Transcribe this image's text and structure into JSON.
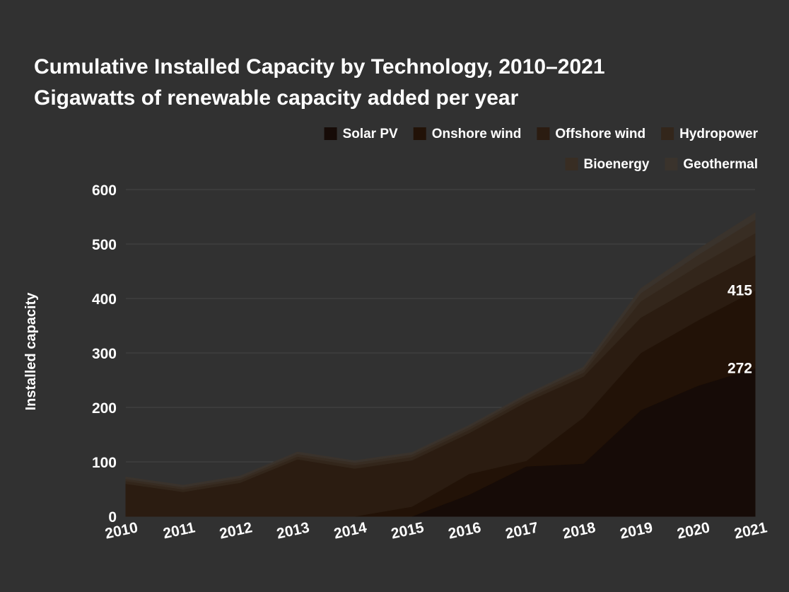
{
  "chart_data": {
    "type": "area",
    "stacked": true,
    "title": [
      "Cumulative Installed Capacity by Technology, 2010–2021",
      "Gigawatts of renewable capacity added per year"
    ],
    "xlabel": "",
    "ylabel": "Installed capacity",
    "x": [
      "2010",
      "2011",
      "2012",
      "2013",
      "2014",
      "2015",
      "2016",
      "2017",
      "2018",
      "2019",
      "2020",
      "2021"
    ],
    "ylim": [
      0,
      600
    ],
    "yticks": [
      0,
      100,
      200,
      300,
      400,
      500,
      600
    ],
    "ytick_labels": [
      "0",
      "100",
      "200",
      "300",
      "400",
      "500",
      "600"
    ],
    "grid": true,
    "legend_position": "top-right",
    "series": [
      {
        "name": "Solar PV",
        "color": "#160b07",
        "values": [
          0,
          0,
          0,
          0,
          0,
          0,
          40,
          92,
          97,
          195,
          240,
          272
        ]
      },
      {
        "name": "Onshore wind",
        "color": "#221207",
        "values": [
          0,
          0,
          0,
          0,
          0,
          18,
          38,
          10,
          85,
          105,
          120,
          143
        ]
      },
      {
        "name": "Offshore wind",
        "color": "#2b1c11",
        "values": [
          60,
          45,
          62,
          105,
          88,
          85,
          75,
          108,
          75,
          65,
          65,
          65
        ]
      },
      {
        "name": "Hydropower",
        "color": "#33261b",
        "values": [
          5,
          5,
          5,
          5,
          6,
          6,
          6,
          6,
          7,
          30,
          35,
          40
        ]
      },
      {
        "name": "Bioenergy",
        "color": "#382d23",
        "values": [
          4,
          4,
          4,
          5,
          5,
          5,
          5,
          5,
          6,
          15,
          20,
          25
        ]
      },
      {
        "name": "Geothermal",
        "color": "#3a332c",
        "values": [
          3,
          3,
          3,
          3,
          3,
          3,
          3,
          3,
          4,
          8,
          10,
          12
        ]
      }
    ],
    "end_labels": [
      {
        "series": "Solar PV",
        "text": "272"
      },
      {
        "series": "Onshore wind",
        "text": "415"
      }
    ]
  },
  "colors": {
    "background": "#313131",
    "grid": "#454545",
    "text": "#ffffff"
  }
}
